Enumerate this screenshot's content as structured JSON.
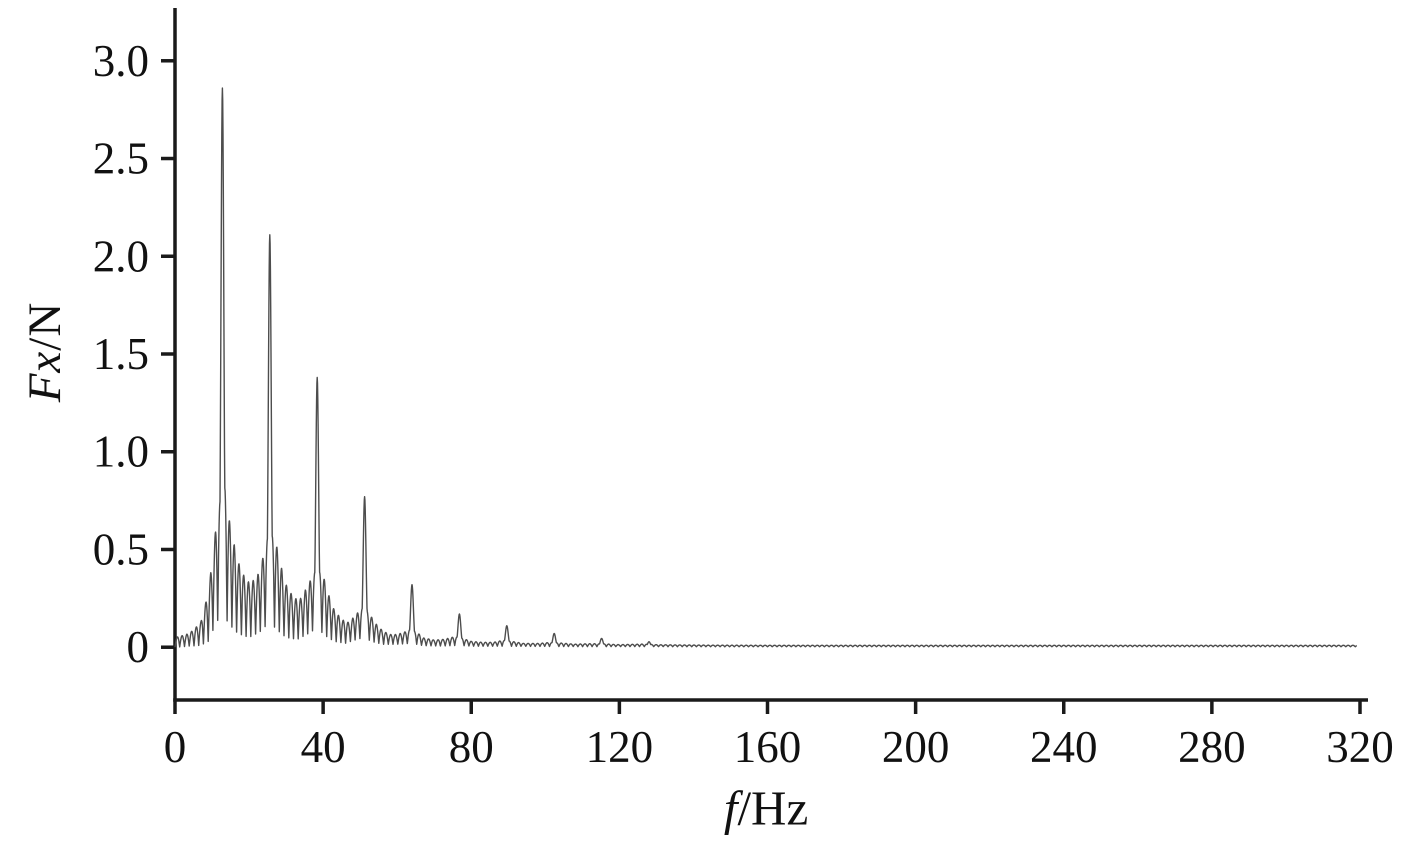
{
  "figure": {
    "background": "#ffffff",
    "axis_color": "#1a1a1a",
    "line_color": "#4d4d4d",
    "text_color": "#111111"
  },
  "chart_data": {
    "type": "line",
    "title": "",
    "xlabel": "f/Hz",
    "ylabel": "Fx/N",
    "labels": {
      "y_italic": "Fx",
      "y_rest": "/N",
      "x_italic": "f",
      "x_rest": "/Hz"
    },
    "xlim": [
      0,
      320
    ],
    "ylim": [
      -0.27,
      3.27
    ],
    "xticks": [
      0,
      40,
      80,
      120,
      160,
      200,
      240,
      280,
      320
    ],
    "yticks": [
      "0",
      "0.5",
      "1.0",
      "1.5",
      "2.0",
      "2.5",
      "3.0"
    ],
    "grid": false,
    "legend": "none",
    "fundamental_hz": 12.8,
    "comb_spacing_hz": 1.28,
    "peak_sigma_hz": 0.55,
    "peaks": [
      {
        "x": 12.8,
        "y": 2.86
      },
      {
        "x": 25.6,
        "y": 2.11
      },
      {
        "x": 38.4,
        "y": 1.38
      },
      {
        "x": 51.2,
        "y": 0.77
      },
      {
        "x": 64.0,
        "y": 0.32
      },
      {
        "x": 76.8,
        "y": 0.17
      },
      {
        "x": 89.6,
        "y": 0.11
      },
      {
        "x": 102.4,
        "y": 0.07
      },
      {
        "x": 115.2,
        "y": 0.045
      },
      {
        "x": 128.0,
        "y": 0.028
      }
    ],
    "noise_envelope": [
      [
        0,
        0.05
      ],
      [
        3,
        0.06
      ],
      [
        5,
        0.08
      ],
      [
        7,
        0.12
      ],
      [
        9,
        0.25
      ],
      [
        10.5,
        0.42
      ],
      [
        11.5,
        0.55
      ],
      [
        13.5,
        0.66
      ],
      [
        15,
        0.5
      ],
      [
        16.5,
        0.4
      ],
      [
        18,
        0.32
      ],
      [
        20,
        0.28
      ],
      [
        22,
        0.28
      ],
      [
        23.5,
        0.35
      ],
      [
        25,
        0.44
      ],
      [
        27,
        0.46
      ],
      [
        28.5,
        0.35
      ],
      [
        30,
        0.27
      ],
      [
        32,
        0.21
      ],
      [
        34,
        0.2
      ],
      [
        36,
        0.25
      ],
      [
        37.5,
        0.29
      ],
      [
        40,
        0.3
      ],
      [
        41.5,
        0.22
      ],
      [
        43,
        0.16
      ],
      [
        45,
        0.12
      ],
      [
        47,
        0.1
      ],
      [
        49,
        0.13
      ],
      [
        50.5,
        0.15
      ],
      [
        52.5,
        0.14
      ],
      [
        54,
        0.1
      ],
      [
        56,
        0.07
      ],
      [
        58,
        0.05
      ],
      [
        60,
        0.05
      ],
      [
        62,
        0.06
      ],
      [
        63.5,
        0.07
      ],
      [
        65.5,
        0.06
      ],
      [
        67,
        0.04
      ],
      [
        70,
        0.03
      ],
      [
        73,
        0.035
      ],
      [
        75.5,
        0.045
      ],
      [
        78,
        0.035
      ],
      [
        80,
        0.025
      ],
      [
        83,
        0.02
      ],
      [
        86,
        0.02
      ],
      [
        88.5,
        0.03
      ],
      [
        91,
        0.025
      ],
      [
        94,
        0.015
      ],
      [
        98,
        0.015
      ],
      [
        101,
        0.02
      ],
      [
        104,
        0.018
      ],
      [
        108,
        0.012
      ],
      [
        112,
        0.015
      ],
      [
        116,
        0.014
      ],
      [
        120,
        0.01
      ],
      [
        126,
        0.013
      ],
      [
        130,
        0.01
      ],
      [
        136,
        0.009
      ],
      [
        145,
        0.008
      ],
      [
        160,
        0.008
      ],
      [
        180,
        0.008
      ],
      [
        220,
        0.008
      ],
      [
        270,
        0.008
      ],
      [
        320,
        0.008
      ]
    ],
    "base_envelope": [
      [
        0,
        0.0
      ],
      [
        7,
        0.01
      ],
      [
        9,
        0.03
      ],
      [
        11,
        0.12
      ],
      [
        12.8,
        0.18
      ],
      [
        14.5,
        0.12
      ],
      [
        17,
        0.07
      ],
      [
        20,
        0.05
      ],
      [
        23,
        0.08
      ],
      [
        25.6,
        0.13
      ],
      [
        27.5,
        0.09
      ],
      [
        30,
        0.05
      ],
      [
        33,
        0.04
      ],
      [
        36,
        0.07
      ],
      [
        38.4,
        0.1
      ],
      [
        40.5,
        0.06
      ],
      [
        43,
        0.03
      ],
      [
        46,
        0.02
      ],
      [
        49,
        0.04
      ],
      [
        51.2,
        0.05
      ],
      [
        53,
        0.03
      ],
      [
        56,
        0.015
      ],
      [
        60,
        0.015
      ],
      [
        64,
        0.02
      ],
      [
        67,
        0.008
      ],
      [
        72,
        0.006
      ],
      [
        76.8,
        0.01
      ],
      [
        80,
        0.005
      ],
      [
        90,
        0.005
      ],
      [
        100,
        0.004
      ],
      [
        115,
        0.003
      ],
      [
        130,
        0.003
      ],
      [
        160,
        0.002
      ],
      [
        320,
        0.002
      ]
    ]
  }
}
